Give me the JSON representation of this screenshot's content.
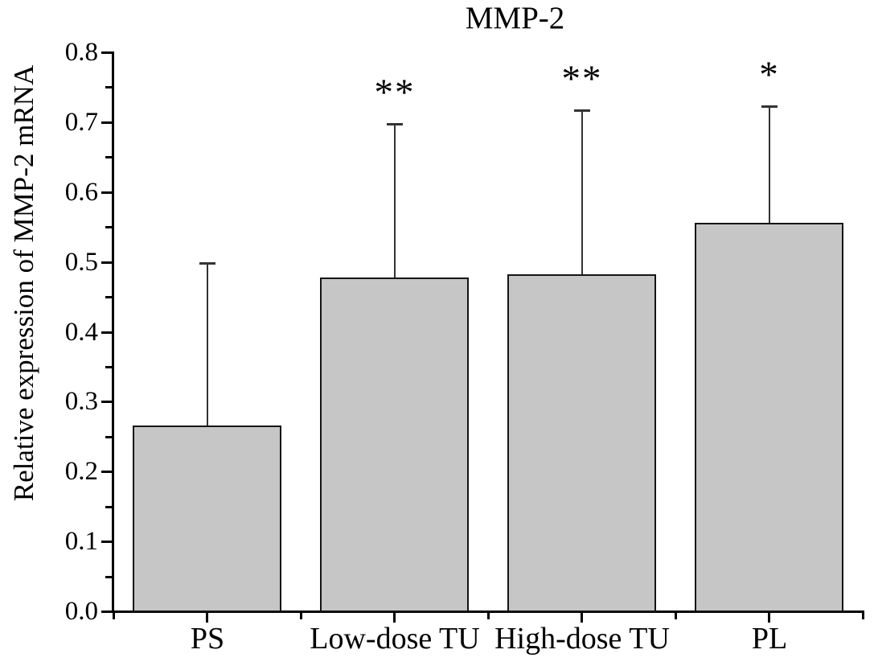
{
  "chart_data": {
    "type": "bar",
    "title": "MMP-2",
    "ylabel": "Relative expression of MMP-2 mRNA",
    "xlabel": "",
    "categories": [
      "PS",
      "Low-dose TU",
      "High-dose TU",
      "PL"
    ],
    "values": [
      0.266,
      0.478,
      0.482,
      0.556
    ],
    "errors_up": [
      0.232,
      0.219,
      0.235,
      0.167
    ],
    "significance": [
      "",
      "**",
      "**",
      "*"
    ],
    "ylim": [
      0.0,
      0.8
    ],
    "ytick_major_step": 0.1,
    "ytick_minor_step": 0.05,
    "ytick_labels": [
      "0.0",
      "0.1",
      "0.2",
      "0.3",
      "0.4",
      "0.5",
      "0.6",
      "0.7",
      "0.8"
    ],
    "grid": false,
    "legend": null,
    "error_bars": "upper-only",
    "colors": {
      "bar_fill": "#c6c6c6",
      "bar_border": "#141414",
      "axis": "#000000",
      "error_bar": "#333333",
      "text": "#000000",
      "background": "#ffffff"
    }
  }
}
